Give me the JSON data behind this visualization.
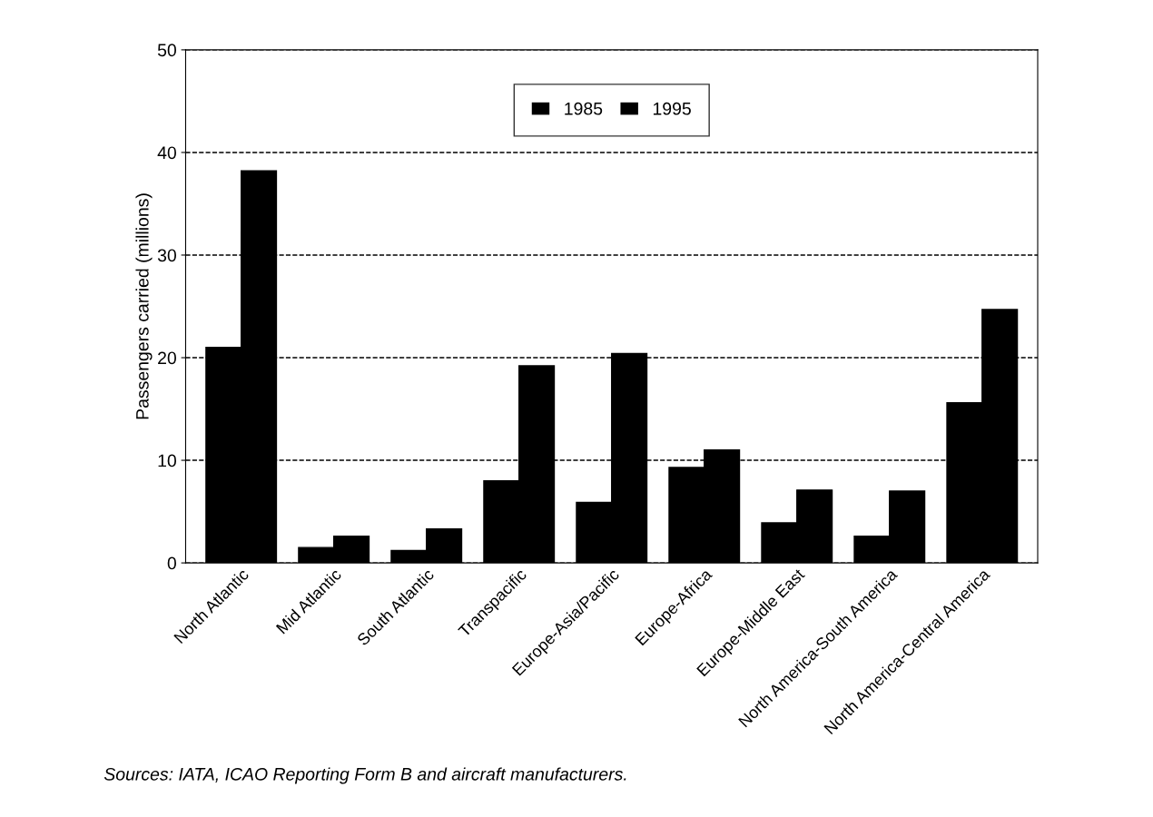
{
  "chart_data": {
    "type": "bar",
    "ylabel": "Passengers carried (millions)",
    "categories": [
      "North Atlantic",
      "Mid Atlantic",
      "South Atlantic",
      "Transpacific",
      "Europe-Asia/Pacific",
      "Europe-Africa",
      "Europe-Middle East",
      "North America-South America",
      "North America-Central America"
    ],
    "series": [
      {
        "name": "1985",
        "color": "#000000",
        "values": [
          21.0,
          1.5,
          1.2,
          8.0,
          5.9,
          9.3,
          3.9,
          2.6,
          15.6
        ]
      },
      {
        "name": "1995",
        "color": "#000000",
        "values": [
          38.2,
          2.6,
          3.3,
          19.2,
          20.4,
          11.0,
          7.1,
          7.0,
          24.7
        ]
      }
    ],
    "ylim": [
      0,
      50
    ],
    "yticks": [
      0,
      10,
      20,
      30,
      40,
      50
    ],
    "grid": "y",
    "legend": "top",
    "line_style": "dashed",
    "annotations": [
      "Sources: IATA, ICAO Reporting Form B and aircraft manufacturers."
    ]
  }
}
